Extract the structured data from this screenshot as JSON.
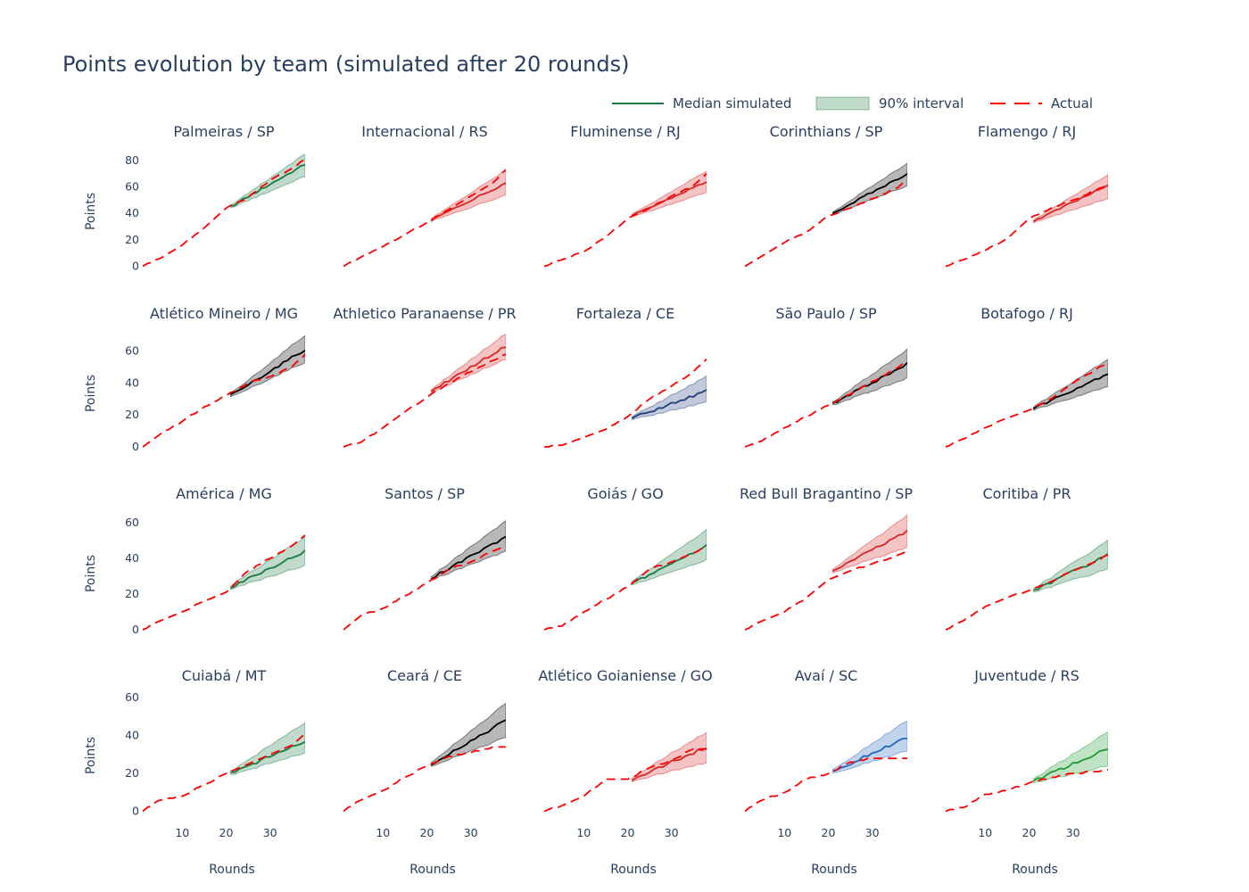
{
  "chart_data": {
    "type": "line",
    "title": "Points evolution by team (simulated after 20 rounds)",
    "xlabel": "Rounds",
    "ylabel": "Points",
    "legend": {
      "placement": "top-right",
      "items": [
        {
          "key": "median",
          "label": "Median simulated"
        },
        {
          "key": "band",
          "label": "90% interval"
        },
        {
          "key": "actual",
          "label": "Actual"
        }
      ]
    },
    "actual_color": "#ff0000",
    "grid": false,
    "sim_start_round": 21,
    "xlim": [
      1,
      38
    ],
    "xticks": [
      10,
      20,
      30
    ],
    "rows": [
      {
        "ylim": [
          -5,
          88
        ],
        "yticks": [
          0,
          20,
          40,
          60,
          80
        ]
      },
      {
        "ylim": [
          -5,
          72
        ],
        "yticks": [
          0,
          20,
          40,
          60
        ]
      },
      {
        "ylim": [
          -3,
          66
        ],
        "yticks": [
          0,
          20,
          40,
          60
        ]
      },
      {
        "ylim": [
          -3,
          62
        ],
        "yticks": [
          0,
          20,
          40,
          60
        ]
      }
    ],
    "teams": [
      {
        "name": "Palmeiras / SP",
        "color": "#1b7a45",
        "actual_final": 81,
        "sim_start": 45,
        "sim_end": 77,
        "band_low_end": 68,
        "band_high_end": 85,
        "actual_at": {
          "5": 6,
          "10": 16,
          "15": 29,
          "20": 44,
          "25": 52,
          "30": 65,
          "35": 74,
          "38": 81
        }
      },
      {
        "name": "Internacional / RS",
        "color": "#d62728",
        "actual_final": 73,
        "sim_start": 35,
        "sim_end": 63,
        "band_low_end": 54,
        "band_high_end": 73,
        "actual_at": {
          "5": 7,
          "10": 15,
          "15": 24,
          "20": 33,
          "25": 43,
          "30": 53,
          "35": 63,
          "38": 73
        }
      },
      {
        "name": "Fluminense / RJ",
        "color": "#d62728",
        "actual_final": 70,
        "sim_start": 38,
        "sim_end": 64,
        "band_low_end": 56,
        "band_high_end": 72,
        "actual_at": {
          "5": 5,
          "10": 11,
          "15": 22,
          "20": 36,
          "25": 44,
          "30": 53,
          "35": 61,
          "38": 70
        }
      },
      {
        "name": "Corinthians / SP",
        "color": "#000000",
        "actual_final": 65,
        "sim_start": 40,
        "sim_end": 70,
        "band_low_end": 61,
        "band_high_end": 78,
        "actual_at": {
          "5": 8,
          "10": 18,
          "15": 26,
          "20": 38,
          "25": 44,
          "30": 51,
          "35": 58,
          "38": 65
        }
      },
      {
        "name": "Flamengo / RJ",
        "color": "#d62728",
        "actual_final": 62,
        "sim_start": 34,
        "sim_end": 61,
        "band_low_end": 51,
        "band_high_end": 69,
        "actual_at": {
          "5": 5,
          "10": 12,
          "15": 21,
          "20": 36,
          "25": 44,
          "30": 50,
          "35": 57,
          "38": 62
        }
      },
      {
        "name": "Atlético Mineiro / MG",
        "color": "#000000",
        "actual_final": 58,
        "sim_start": 32,
        "sim_end": 61,
        "band_low_end": 53,
        "band_high_end": 70,
        "actual_at": {
          "5": 8,
          "10": 16,
          "15": 25,
          "20": 32,
          "25": 40,
          "30": 44,
          "35": 50,
          "38": 58
        }
      },
      {
        "name": "Athletico Paranaense / PR",
        "color": "#d62728",
        "actual_final": 58,
        "sim_start": 35,
        "sim_end": 63,
        "band_low_end": 55,
        "band_high_end": 71,
        "actual_at": {
          "5": 3,
          "10": 12,
          "15": 22,
          "20": 31,
          "25": 40,
          "30": 47,
          "35": 54,
          "38": 58
        }
      },
      {
        "name": "Fortaleza / CE",
        "color": "#1f3e7a",
        "actual_final": 55,
        "sim_start": 18,
        "sim_end": 35,
        "band_low_end": 28,
        "band_high_end": 44,
        "actual_at": {
          "5": 1,
          "10": 6,
          "15": 11,
          "20": 19,
          "25": 30,
          "30": 38,
          "35": 47,
          "38": 55
        }
      },
      {
        "name": "São Paulo / SP",
        "color": "#000000",
        "actual_final": 54,
        "sim_start": 27,
        "sim_end": 52,
        "band_low_end": 43,
        "band_high_end": 61,
        "actual_at": {
          "5": 4,
          "10": 12,
          "15": 19,
          "20": 26,
          "25": 33,
          "30": 41,
          "35": 48,
          "38": 54
        }
      },
      {
        "name": "Botafogo / RJ",
        "color": "#000000",
        "actual_final": 53,
        "sim_start": 24,
        "sim_end": 46,
        "band_low_end": 38,
        "band_high_end": 55,
        "actual_at": {
          "5": 5,
          "10": 12,
          "15": 18,
          "20": 23,
          "25": 30,
          "30": 40,
          "35": 48,
          "38": 53
        }
      },
      {
        "name": "América / MG",
        "color": "#1b7a45",
        "actual_final": 53,
        "sim_start": 24,
        "sim_end": 44,
        "band_low_end": 36,
        "band_high_end": 52,
        "actual_at": {
          "5": 5,
          "10": 10,
          "15": 16,
          "20": 21,
          "25": 33,
          "30": 40,
          "35": 47,
          "38": 53
        }
      },
      {
        "name": "Santos / SP",
        "color": "#000000",
        "actual_final": 47,
        "sim_start": 29,
        "sim_end": 52,
        "band_low_end": 44,
        "band_high_end": 61,
        "actual_at": {
          "5": 8,
          "10": 12,
          "15": 19,
          "20": 26,
          "25": 34,
          "30": 38,
          "35": 44,
          "38": 47
        }
      },
      {
        "name": "Goiás / GO",
        "color": "#1b7a45",
        "actual_final": 47,
        "sim_start": 26,
        "sim_end": 47,
        "band_low_end": 39,
        "band_high_end": 56,
        "actual_at": {
          "5": 2,
          "10": 10,
          "15": 17,
          "20": 24,
          "25": 34,
          "30": 38,
          "35": 43,
          "38": 47
        }
      },
      {
        "name": "Red Bull Bragantino / SP",
        "color": "#d62728",
        "actual_final": 44,
        "sim_start": 33,
        "sim_end": 55,
        "band_low_end": 46,
        "band_high_end": 64,
        "actual_at": {
          "5": 5,
          "10": 10,
          "15": 18,
          "20": 28,
          "25": 33,
          "30": 37,
          "35": 41,
          "38": 44
        }
      },
      {
        "name": "Coritiba / PR",
        "color": "#1b7a45",
        "actual_final": 42,
        "sim_start": 22,
        "sim_end": 42,
        "band_low_end": 34,
        "band_high_end": 50,
        "actual_at": {
          "5": 5,
          "10": 13,
          "15": 18,
          "20": 22,
          "25": 27,
          "30": 33,
          "35": 38,
          "38": 42
        }
      },
      {
        "name": "Cuiabá / MT",
        "color": "#1b7a45",
        "actual_final": 41,
        "sim_start": 20,
        "sim_end": 37,
        "band_low_end": 31,
        "band_high_end": 47,
        "actual_at": {
          "5": 6,
          "10": 8,
          "15": 14,
          "20": 20,
          "25": 25,
          "30": 30,
          "35": 35,
          "38": 41
        }
      },
      {
        "name": "Ceará / CE",
        "color": "#000000",
        "actual_final": 34,
        "sim_start": 25,
        "sim_end": 48,
        "band_low_end": 39,
        "band_high_end": 57,
        "actual_at": {
          "5": 6,
          "10": 11,
          "15": 18,
          "20": 24,
          "25": 29,
          "30": 31,
          "35": 34,
          "38": 34
        }
      },
      {
        "name": "Atlético Goianiense / GO",
        "color": "#d62728",
        "actual_final": 33,
        "sim_start": 17,
        "sim_end": 34,
        "band_low_end": 26,
        "band_high_end": 42,
        "actual_at": {
          "5": 3,
          "10": 8,
          "15": 17,
          "20": 17,
          "25": 23,
          "30": 27,
          "35": 33,
          "38": 33
        }
      },
      {
        "name": "Avaí / SC",
        "color": "#1f66c0",
        "actual_final": 28,
        "sim_start": 21,
        "sim_end": 39,
        "band_low_end": 32,
        "band_high_end": 48,
        "actual_at": {
          "5": 6,
          "10": 10,
          "15": 17,
          "20": 20,
          "25": 26,
          "30": 28,
          "35": 28,
          "38": 28
        }
      },
      {
        "name": "Juventude / RS",
        "color": "#1e9a30",
        "actual_final": 22,
        "sim_start": 16,
        "sim_end": 33,
        "band_low_end": 24,
        "band_high_end": 42,
        "actual_at": {
          "5": 2,
          "10": 9,
          "15": 11,
          "20": 15,
          "25": 18,
          "30": 20,
          "35": 21,
          "38": 22
        }
      }
    ]
  }
}
